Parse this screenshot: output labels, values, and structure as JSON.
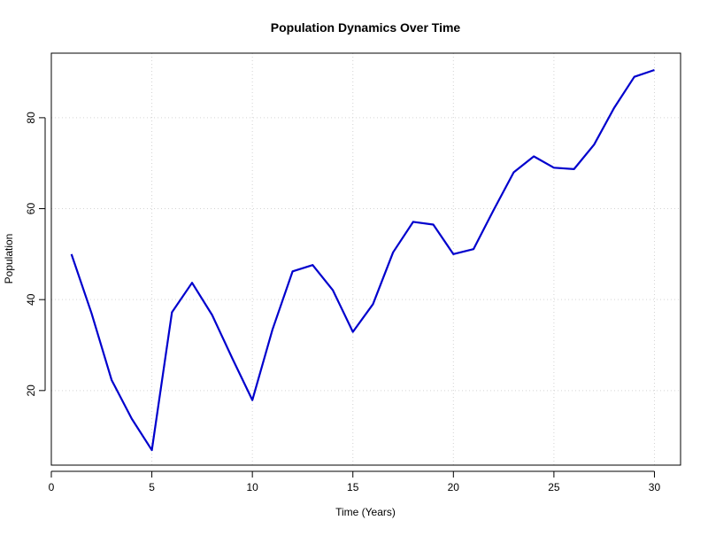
{
  "chart_data": {
    "type": "line",
    "title": "Population Dynamics Over Time",
    "xlabel": "Time (Years)",
    "ylabel": "Population",
    "xlim": [
      0,
      31.3
    ],
    "ylim": [
      3.6,
      94.2
    ],
    "xticks": [
      0,
      5,
      10,
      15,
      20,
      25,
      30
    ],
    "yticks": [
      20,
      40,
      60,
      80
    ],
    "grid": true,
    "line_color": "#0000CD",
    "grid_color": "#D3D3D3",
    "series": [
      {
        "x": [
          1,
          2,
          3,
          4,
          5,
          6,
          7,
          8,
          9,
          10,
          11,
          12,
          13,
          14,
          15,
          16,
          17,
          18,
          19,
          20,
          21,
          22,
          23,
          24,
          25,
          26,
          27,
          28,
          29,
          30
        ],
        "values": [
          50.0,
          37.0,
          22.3,
          13.8,
          6.9,
          37.2,
          43.7,
          36.6,
          27.1,
          17.9,
          33.4,
          46.2,
          47.6,
          42.1,
          32.9,
          39.0,
          50.4,
          57.1,
          56.5,
          50.0,
          51.1,
          59.7,
          68.0,
          71.5,
          69.0,
          68.7,
          74.1,
          82.2,
          89.0,
          90.5
        ]
      }
    ]
  }
}
